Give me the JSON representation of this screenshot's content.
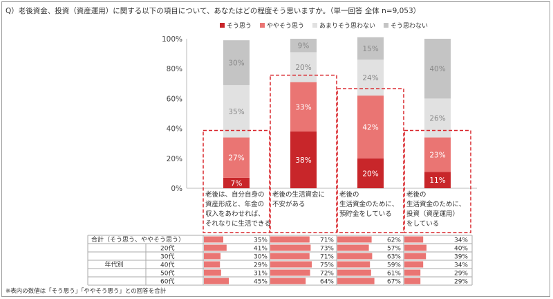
{
  "question": "Q）老後資金、投資（資産運用）に関する以下の項目について、あなたはどの程度そう思いますか。（単一回答 全体 n=9,053）",
  "legend": [
    {
      "label": "そう思う",
      "color": "#c8262a"
    },
    {
      "label": "ややそう思う",
      "color": "#ea7573"
    },
    {
      "label": "あまりそう思わない",
      "color": "#e1e1e1"
    },
    {
      "label": "そう思わない",
      "color": "#c4c4c4"
    }
  ],
  "chart_data": {
    "type": "bar",
    "stacked": true,
    "ylim": [
      0,
      100
    ],
    "y_ticks": [
      "0%",
      "20%",
      "40%",
      "60%",
      "80%",
      "100%"
    ],
    "grid": false,
    "legend_position": "top",
    "categories": [
      [
        "老後は、自分自身の",
        "資産形成と、年金の",
        "収入をあわせれば、",
        "それなりに生活できる"
      ],
      [
        "老後の生活資金に",
        "不安がある"
      ],
      [
        "老後の",
        "生活資金のために、",
        "預貯金をしている"
      ],
      [
        "老後の",
        "生活資金のために、",
        "投資（資産運用）",
        "をしている"
      ]
    ],
    "series": [
      {
        "name": "そう思う",
        "color": "#c8262a",
        "values": [
          7,
          38,
          20,
          11
        ],
        "labels": [
          "7%",
          "38%",
          "20%",
          "11%"
        ]
      },
      {
        "name": "ややそう思う",
        "color": "#ea7573",
        "values": [
          27,
          33,
          42,
          23
        ],
        "labels": [
          "27%",
          "33%",
          "42%",
          "23%"
        ]
      },
      {
        "name": "あまりそう思わない",
        "color": "#e1e1e1",
        "values": [
          35,
          20,
          24,
          26
        ],
        "labels": [
          "35%",
          "20%",
          "24%",
          "26%"
        ]
      },
      {
        "name": "そう思わない",
        "color": "#c4c4c4",
        "values": [
          30,
          9,
          15,
          40
        ],
        "labels": [
          "30%",
          "9%",
          "15%",
          "40%"
        ]
      }
    ],
    "highlighted": [
      0,
      1,
      2,
      3
    ]
  },
  "table": {
    "total_label": "合計（そう思う、ややそう思う）",
    "group_label": "年代別",
    "rows": [
      {
        "label": "",
        "values": [
          35,
          71,
          62,
          34
        ],
        "texts": [
          "35%",
          "71%",
          "62%",
          "34%"
        ]
      },
      {
        "label": "20代",
        "values": [
          41,
          73,
          57,
          40
        ],
        "texts": [
          "41%",
          "73%",
          "57%",
          "40%"
        ]
      },
      {
        "label": "30代",
        "values": [
          30,
          71,
          63,
          39
        ],
        "texts": [
          "30%",
          "71%",
          "63%",
          "39%"
        ]
      },
      {
        "label": "40代",
        "values": [
          29,
          75,
          59,
          34
        ],
        "texts": [
          "29%",
          "75%",
          "59%",
          "34%"
        ]
      },
      {
        "label": "50代",
        "values": [
          31,
          72,
          61,
          29
        ],
        "texts": [
          "31%",
          "72%",
          "61%",
          "29%"
        ]
      },
      {
        "label": "60代",
        "values": [
          45,
          64,
          67,
          29
        ],
        "texts": [
          "45%",
          "64%",
          "67%",
          "29%"
        ]
      }
    ],
    "bar_color": "#ea7573"
  },
  "footnote": "※表内の数値は「そう思う」「ややそう思う」との回答を合計"
}
